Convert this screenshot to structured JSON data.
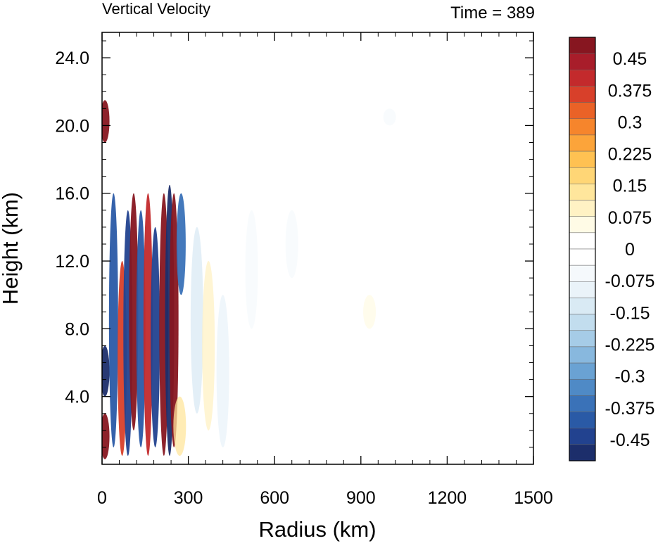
{
  "chart_data": {
    "type": "heatmap",
    "title_left": "Vertical Velocity",
    "title_right": "Time = 389",
    "xlabel": "Radius (km)",
    "ylabel": "Height (km)",
    "xlim": [
      0,
      1500
    ],
    "ylim": [
      0,
      25.5
    ],
    "x_ticks": [
      0,
      300,
      600,
      900,
      1200,
      1500
    ],
    "x_tick_labels": [
      "0",
      "300",
      "600",
      "900",
      "1200",
      "1500"
    ],
    "y_ticks": [
      4,
      8,
      12,
      16,
      20,
      24
    ],
    "y_tick_labels": [
      "4.0",
      "8.0",
      "12.0",
      "16.0",
      "20.0",
      "24.0"
    ],
    "colorbar": {
      "levels": [
        -0.5,
        0.5
      ],
      "labels": [
        {
          "value": 0.45,
          "text": "0.45"
        },
        {
          "value": 0.375,
          "text": "0.375"
        },
        {
          "value": 0.3,
          "text": "0.3"
        },
        {
          "value": 0.225,
          "text": "0.225"
        },
        {
          "value": 0.15,
          "text": "0.15"
        },
        {
          "value": 0.075,
          "text": "0.075"
        },
        {
          "value": 0,
          "text": "0"
        },
        {
          "value": -0.075,
          "text": "-0.075"
        },
        {
          "value": -0.15,
          "text": "-0.15"
        },
        {
          "value": -0.225,
          "text": "-0.225"
        },
        {
          "value": -0.3,
          "text": "-0.3"
        },
        {
          "value": -0.375,
          "text": "-0.375"
        },
        {
          "value": -0.45,
          "text": "-0.45"
        }
      ],
      "colors": [
        "#1c2e6b",
        "#22428f",
        "#2a5aa6",
        "#3a72b8",
        "#4f8ac6",
        "#6aa2d3",
        "#88b8de",
        "#a6cce7",
        "#c2ddee",
        "#d9eaf4",
        "#eaf3f9",
        "#f5f9fc",
        "#ffffff",
        "#ffffff",
        "#fffbe6",
        "#fff2c4",
        "#ffe69c",
        "#ffd676",
        "#ffc152",
        "#fca43a",
        "#f6852c",
        "#ea6227",
        "#d8402a",
        "#c32a2c",
        "#a81d2a",
        "#871620"
      ]
    },
    "features": [
      {
        "r": 10,
        "z0": 0.3,
        "z1": 3,
        "w": 0.5
      },
      {
        "r": 10,
        "z0": 4,
        "z1": 7,
        "w": -0.5
      },
      {
        "r": 10,
        "z0": 19,
        "z1": 21.5,
        "w": 0.5
      },
      {
        "r": 40,
        "z0": 1,
        "z1": 16,
        "w": -0.4
      },
      {
        "r": 70,
        "z0": 0.5,
        "z1": 12,
        "w": 0.35
      },
      {
        "r": 90,
        "z0": 0.5,
        "z1": 15,
        "w": -0.45
      },
      {
        "r": 110,
        "z0": 2,
        "z1": 16,
        "w": 0.5
      },
      {
        "r": 135,
        "z0": 1,
        "z1": 15,
        "w": -0.4
      },
      {
        "r": 160,
        "z0": 0.5,
        "z1": 16,
        "w": 0.4
      },
      {
        "r": 185,
        "z0": 1,
        "z1": 14,
        "w": -0.45
      },
      {
        "r": 215,
        "z0": 0.5,
        "z1": 16,
        "w": 0.5
      },
      {
        "r": 235,
        "z0": 0.5,
        "z1": 16.5,
        "w": -0.5
      },
      {
        "r": 250,
        "z0": 1,
        "z1": 16,
        "w": 0.5
      },
      {
        "r": 275,
        "z0": 10,
        "z1": 16,
        "w": -0.35
      },
      {
        "r": 270,
        "z0": 0.5,
        "z1": 4,
        "w": 0.15
      },
      {
        "r": 330,
        "z0": 3,
        "z1": 14,
        "w": -0.12
      },
      {
        "r": 370,
        "z0": 2,
        "z1": 12,
        "w": 0.08
      },
      {
        "r": 420,
        "z0": 1,
        "z1": 10,
        "w": -0.08
      },
      {
        "r": 520,
        "z0": 8,
        "z1": 15,
        "w": -0.06
      },
      {
        "r": 660,
        "z0": 11,
        "z1": 15,
        "w": -0.05
      },
      {
        "r": 930,
        "z0": 8,
        "z1": 10,
        "w": 0.04
      },
      {
        "r": 1000,
        "z0": 20,
        "z1": 21,
        "w": -0.04
      }
    ]
  }
}
